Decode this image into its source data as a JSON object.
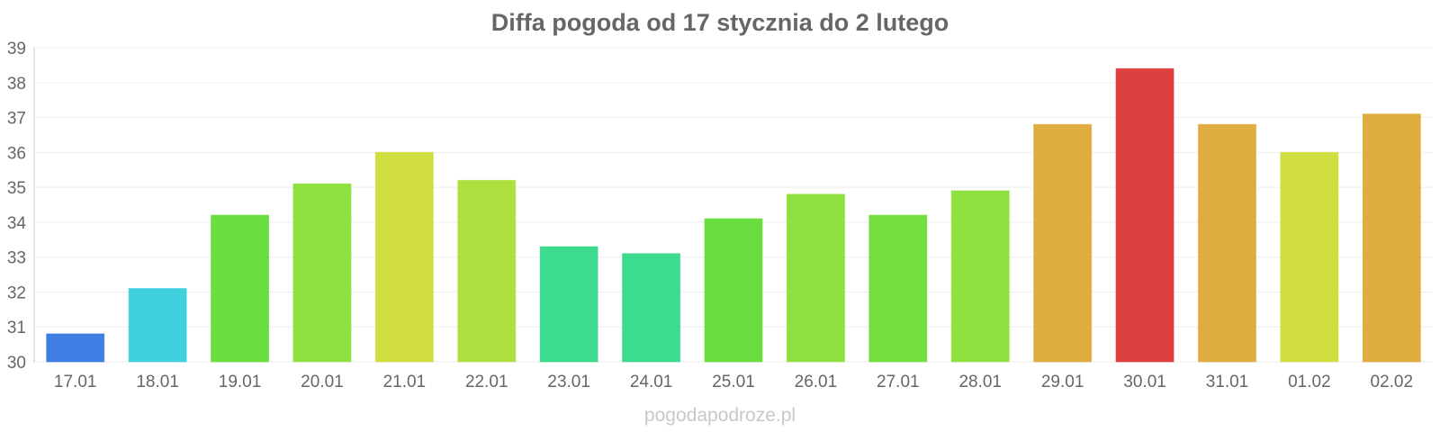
{
  "chart_data": {
    "type": "bar",
    "title": "Diffa pogoda od 17 stycznia do 2 lutego",
    "xlabel": "",
    "ylabel": "",
    "categories": [
      "17.01",
      "18.01",
      "19.01",
      "20.01",
      "21.01",
      "22.01",
      "23.01",
      "24.01",
      "25.01",
      "26.01",
      "27.01",
      "28.01",
      "29.01",
      "30.01",
      "31.01",
      "01.02",
      "02.02"
    ],
    "values": [
      30.8,
      32.1,
      34.2,
      35.1,
      36.0,
      35.2,
      33.3,
      33.1,
      34.1,
      34.8,
      34.2,
      34.9,
      36.8,
      38.4,
      36.8,
      36.0,
      37.1
    ],
    "colors": [
      "#3577e0",
      "#35cfdc",
      "#62dc35",
      "#88df35",
      "#cfdc35",
      "#aade35",
      "#33d98a",
      "#33d98a",
      "#62dc35",
      "#88df35",
      "#6adc35",
      "#88df35",
      "#dca835",
      "#dc3535",
      "#dca835",
      "#cfdc35",
      "#dca835"
    ],
    "ylim": [
      30,
      39
    ],
    "yticks": [
      30,
      31,
      32,
      33,
      34,
      35,
      36,
      37,
      38,
      39
    ],
    "grid": true,
    "legend": "none"
  },
  "watermark": "pogodapodroze.pl"
}
